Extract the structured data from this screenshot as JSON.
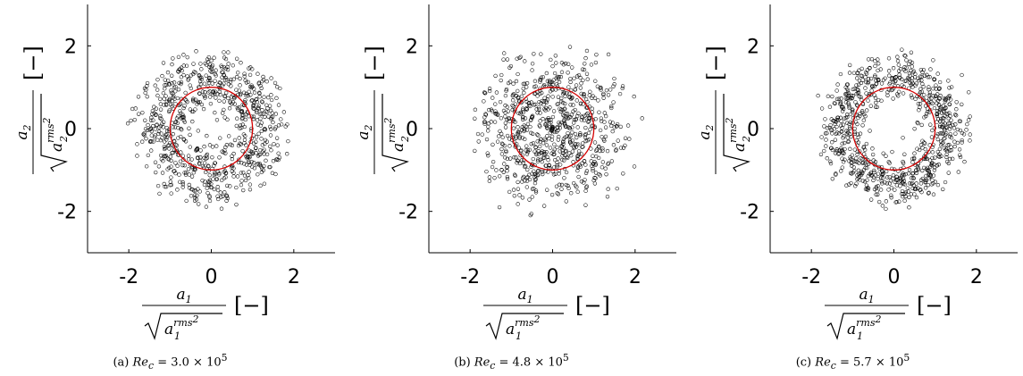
{
  "chart_data": [
    {
      "type": "scatter",
      "caption": {
        "tag": "(a)",
        "symbol": "Re",
        "sub": "c",
        "value": "= 3.0 × 10",
        "exp": "5"
      },
      "xlim": [
        -3,
        3
      ],
      "ylim": [
        -3,
        3
      ],
      "xticks": [
        -2,
        0,
        2
      ],
      "yticks": [
        -2,
        0,
        2
      ],
      "tick_labels": [
        "-2",
        "0",
        "2"
      ],
      "xlabel": {
        "num": "a",
        "num_sub": "1",
        "den_sup": "rms",
        "den_sub": "1",
        "pow": "2",
        "unit": "[−]"
      },
      "ylabel": {
        "num": "a",
        "num_sub": "2",
        "den_sup": "rms",
        "den_sub": "2",
        "pow": "2",
        "unit": "[−]"
      },
      "circle": {
        "cx": 0,
        "cy": 0,
        "r": 1,
        "color": "#d40000"
      },
      "point_distribution": {
        "n": 780,
        "r_mean": 1.25,
        "r_sd": 0.38,
        "r_min": 0.05,
        "r_max": 2.05
      },
      "marker_color": "#000000"
    },
    {
      "type": "scatter",
      "caption": {
        "tag": "(b)",
        "symbol": "Re",
        "sub": "c",
        "value": "= 4.8 × 10",
        "exp": "5"
      },
      "xlim": [
        -3,
        3
      ],
      "ylim": [
        -3,
        3
      ],
      "xticks": [
        -2,
        0,
        2
      ],
      "yticks": [
        -2,
        0,
        2
      ],
      "tick_labels": [
        "-2",
        "0",
        "2"
      ],
      "xlabel": {
        "num": "a",
        "num_sub": "1",
        "den_sup": "rms",
        "den_sub": "1",
        "pow": "2",
        "unit": "[−]"
      },
      "ylabel": {
        "num": "a",
        "num_sub": "2",
        "den_sup": "rms",
        "den_sub": "2",
        "pow": "2",
        "unit": "[−]"
      },
      "circle": {
        "cx": 0,
        "cy": 0,
        "r": 1,
        "color": "#d40000"
      },
      "point_distribution": {
        "n": 780,
        "r_mean": 1.05,
        "r_sd": 0.55,
        "r_min": 0.0,
        "r_max": 2.35
      },
      "marker_color": "#000000"
    },
    {
      "type": "scatter",
      "caption": {
        "tag": "(c)",
        "symbol": "Re",
        "sub": "c",
        "value": "= 5.7 × 10",
        "exp": "5"
      },
      "xlim": [
        -3,
        3
      ],
      "ylim": [
        -3,
        3
      ],
      "xticks": [
        -2,
        0,
        2
      ],
      "yticks": [
        -2,
        0,
        2
      ],
      "tick_labels": [
        "-2",
        "0",
        "2"
      ],
      "xlabel": {
        "num": "a",
        "num_sub": "1",
        "den_sup": "rms",
        "den_sub": "1",
        "pow": "2",
        "unit": "[−]"
      },
      "ylabel": {
        "num": "a",
        "num_sub": "2",
        "den_sup": "rms",
        "den_sub": "2",
        "pow": "2",
        "unit": "[−]"
      },
      "circle": {
        "cx": 0,
        "cy": 0,
        "r": 1,
        "color": "#d40000"
      },
      "point_distribution": {
        "n": 820,
        "r_mean": 1.3,
        "r_sd": 0.28,
        "r_min": 0.05,
        "r_max": 2.15
      },
      "marker_color": "#000000"
    }
  ]
}
